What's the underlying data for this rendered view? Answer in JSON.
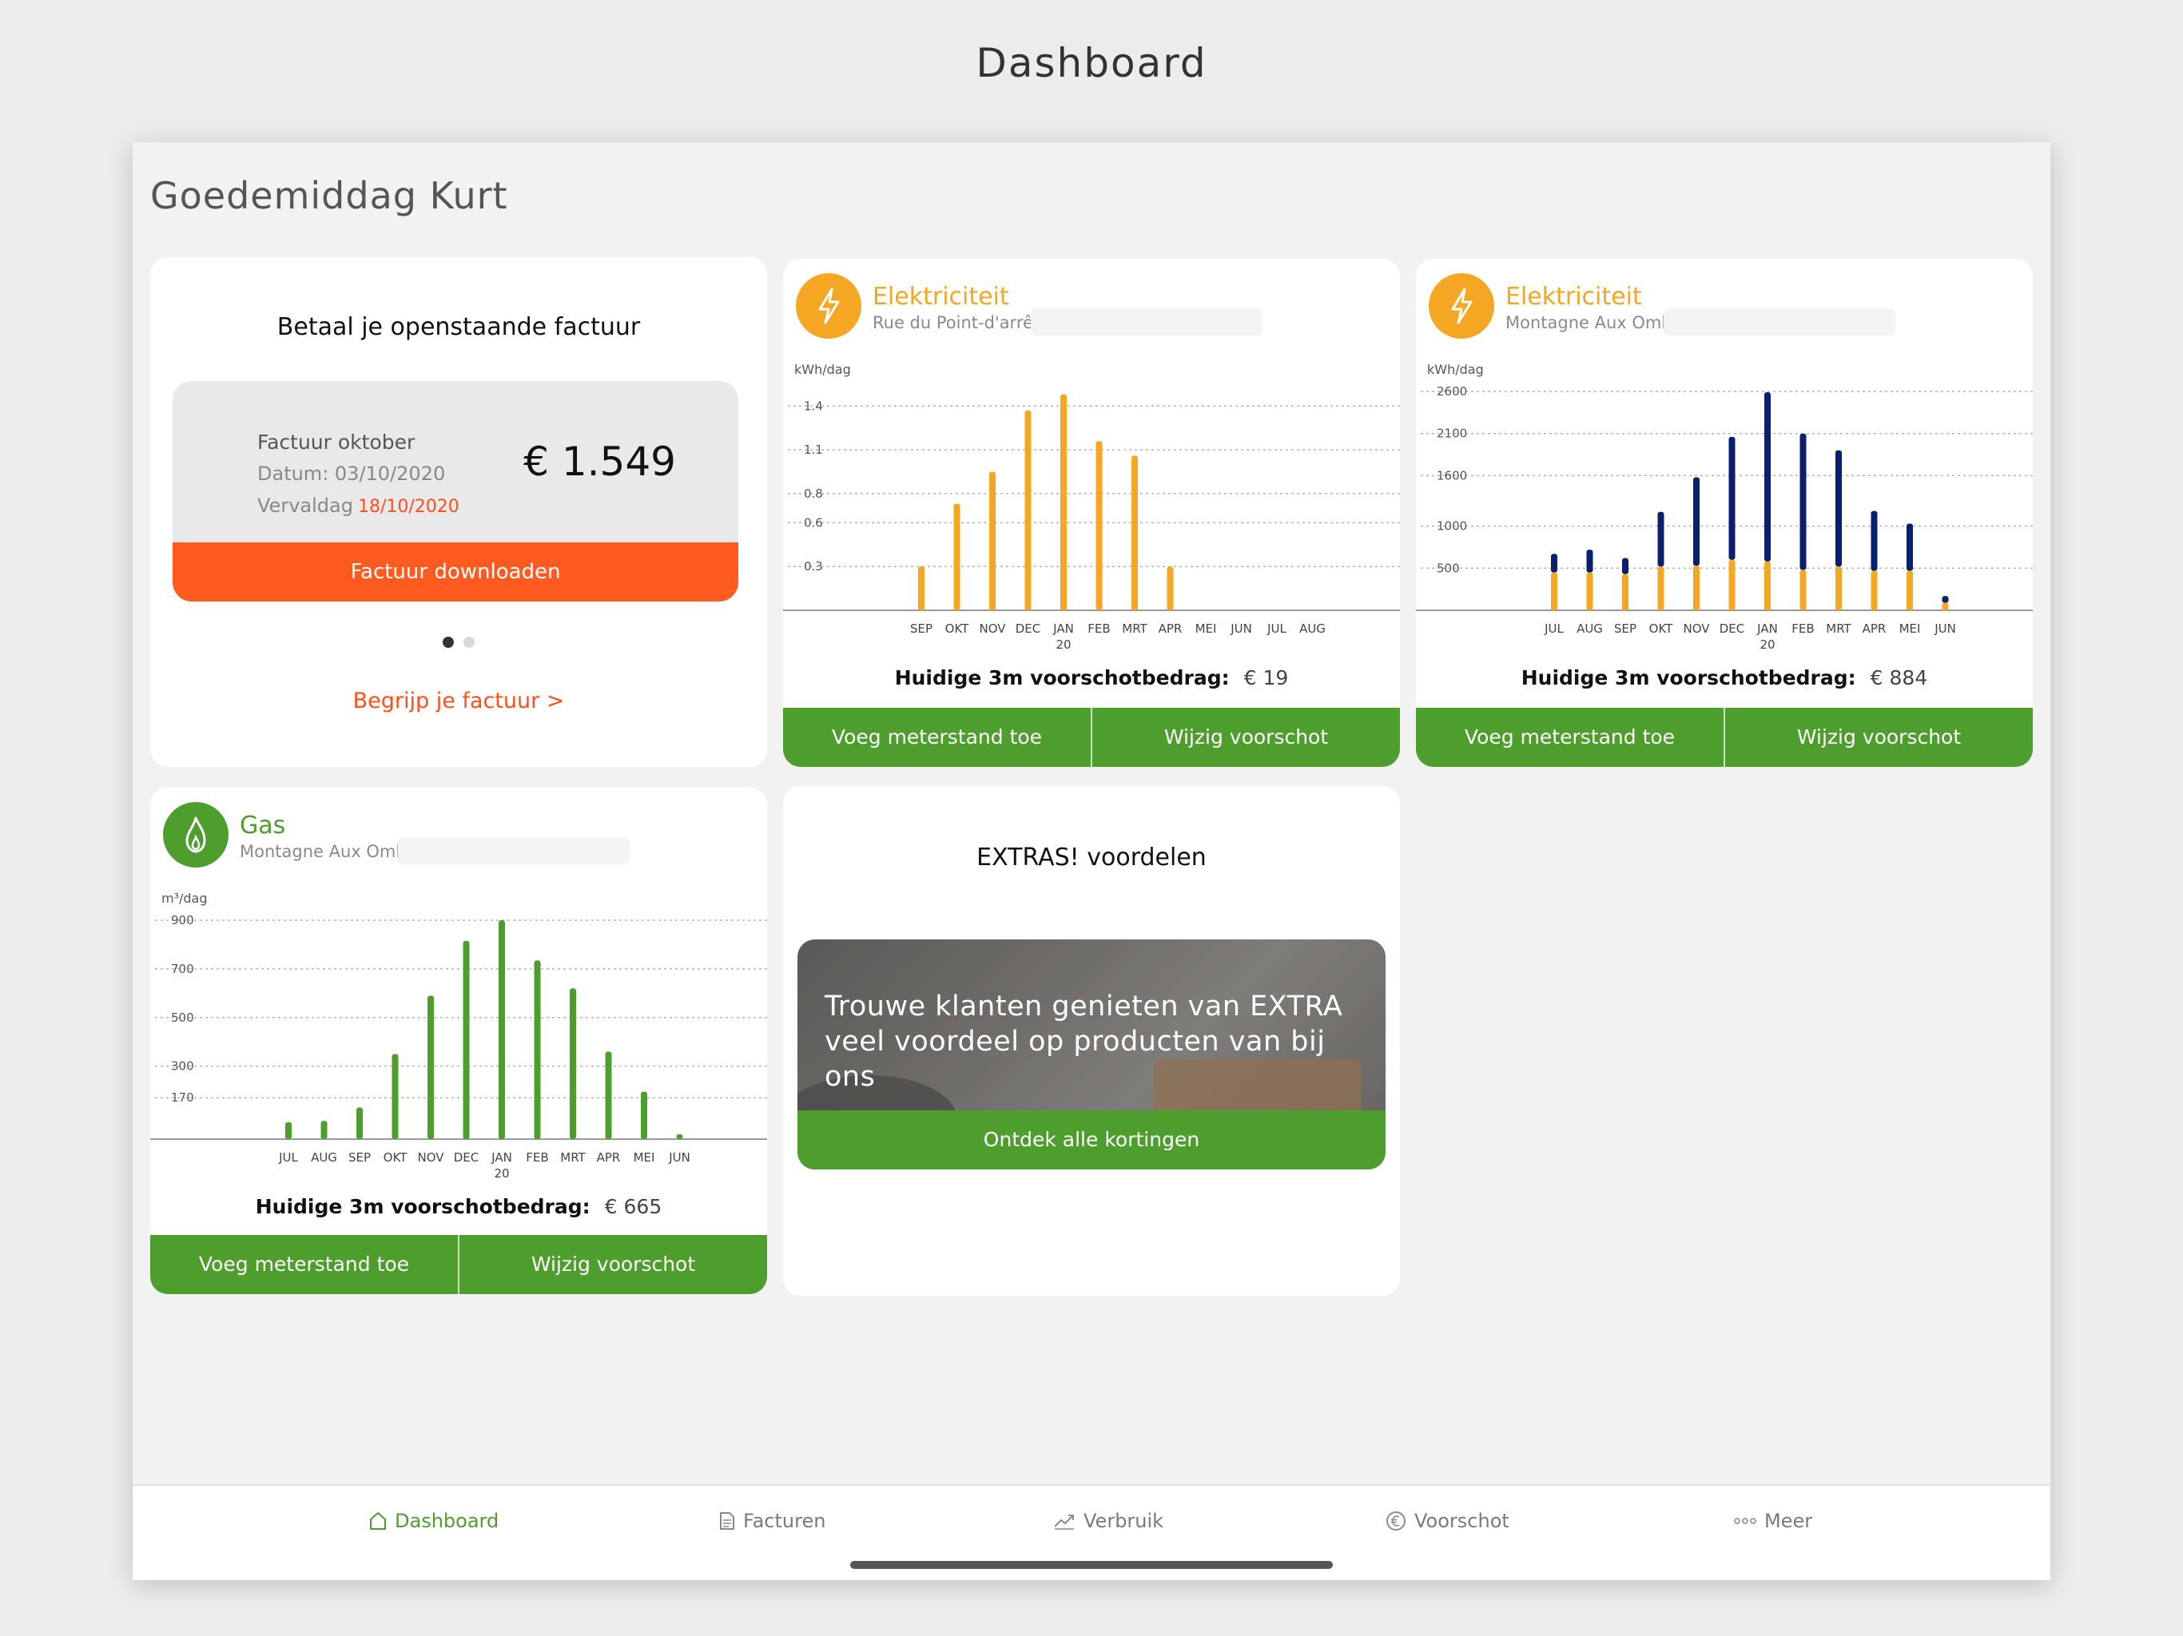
{
  "page_title": "Dashboard",
  "greeting": "Goedemiddag Kurt",
  "invoice": {
    "title": "Betaal je openstaande factuur",
    "label": "Factuur oktober",
    "date_label": "Datum: 03/10/2020",
    "due_label": "Vervaldag",
    "due_value": "18/10/2020",
    "amount": "€ 1.549",
    "download_button": "Factuur downloaden",
    "understand_link": "Begrijp je factuur >",
    "pager_active_color": "#333333",
    "pager_inactive_color": "#d8d8d8"
  },
  "electricity_1": {
    "name": "Elektriciteit",
    "address": "Rue du Point-d'arrêt",
    "icon": "lightning-icon",
    "color": "#f5a623",
    "advance_label": "Huidige 3m voorschotbedrag:",
    "advance_value": "€ 19",
    "meter_button": "Voeg meterstand toe",
    "advance_button": "Wijzig voorschot",
    "chart_data": {
      "type": "bar",
      "ylabel": "kWh/dag",
      "yticks": [
        "1.4",
        "1.1",
        "0.8",
        "0.6",
        "0.3"
      ],
      "ytick_values": [
        1.4,
        1.1,
        0.8,
        0.6,
        0.3
      ],
      "ylim": [
        0,
        1.5
      ],
      "categories": [
        "SEP",
        "OKT",
        "NOV",
        "DEC",
        "JAN",
        "FEB",
        "MRT",
        "APR",
        "MEI",
        "JUN",
        "JUL",
        "AUG"
      ],
      "year_marker": {
        "category": "JAN",
        "label": "20"
      },
      "series": [
        {
          "color": "#f5a623",
          "values": [
            0.3,
            0.73,
            0.95,
            1.37,
            1.48,
            1.16,
            1.06,
            0.3,
            0,
            0,
            0,
            0
          ]
        }
      ]
    }
  },
  "electricity_2": {
    "name": "Elektriciteit",
    "address": "Montagne Aux Ombres",
    "icon": "lightning-icon",
    "color": "#f5a623",
    "advance_label": "Huidige 3m voorschotbedrag:",
    "advance_value": "€ 884",
    "meter_button": "Voeg meterstand toe",
    "advance_button": "Wijzig voorschot",
    "chart_data": {
      "type": "bar",
      "stacked": true,
      "ylabel": "kWh/dag",
      "yticks": [
        "2600",
        "2100",
        "1600",
        "1000",
        "500"
      ],
      "ytick_values": [
        2600,
        2100,
        1600,
        1000,
        500
      ],
      "ylim": [
        0,
        2600
      ],
      "categories": [
        "JUL",
        "AUG",
        "SEP",
        "OKT",
        "NOV",
        "DEC",
        "JAN",
        "FEB",
        "MRT",
        "APR",
        "MEI",
        "JUN"
      ],
      "year_marker": {
        "category": "JAN",
        "label": "20"
      },
      "series": [
        {
          "color": "#f5a623",
          "values": [
            450,
            450,
            430,
            520,
            530,
            600,
            580,
            480,
            520,
            470,
            470,
            90
          ]
        },
        {
          "color": "#0a1f6e",
          "values": [
            220,
            270,
            190,
            650,
            1050,
            1460,
            2010,
            1620,
            1380,
            710,
            560,
            80
          ]
        }
      ]
    }
  },
  "gas": {
    "name": "Gas",
    "address": "Montagne Aux Ombres",
    "icon": "flame-icon",
    "color": "#4e9e2e",
    "advance_label": "Huidige 3m voorschotbedrag:",
    "advance_value": "€ 665",
    "meter_button": "Voeg meterstand toe",
    "advance_button": "Wijzig voorschot",
    "chart_data": {
      "type": "bar",
      "ylabel": "m³/dag",
      "yticks": [
        "900",
        "700",
        "500",
        "300",
        "170"
      ],
      "ytick_values": [
        900,
        700,
        500,
        300,
        170
      ],
      "ylim": [
        0,
        900
      ],
      "categories": [
        "JUL",
        "AUG",
        "SEP",
        "OKT",
        "NOV",
        "DEC",
        "JAN",
        "FEB",
        "MRT",
        "APR",
        "MEI",
        "JUN"
      ],
      "year_marker": {
        "category": "JAN",
        "label": "20"
      },
      "series": [
        {
          "color": "#4e9e2e",
          "values": [
            70,
            75,
            130,
            350,
            590,
            815,
            900,
            735,
            620,
            360,
            195,
            20
          ]
        }
      ]
    }
  },
  "extras": {
    "title": "EXTRAS! voordelen",
    "promo_text": "Trouwe klanten genieten van EXTRA veel voordeel op producten van bij ons",
    "button": "Ontdek alle kortingen"
  },
  "tabbar": {
    "tabs": [
      {
        "label": "Dashboard",
        "icon": "home-icon",
        "active": true
      },
      {
        "label": "Facturen",
        "icon": "document-icon",
        "active": false
      },
      {
        "label": "Verbruik",
        "icon": "trend-icon",
        "active": false
      },
      {
        "label": "Voorschot",
        "icon": "euro-icon",
        "active": false
      },
      {
        "label": "Meer",
        "icon": "more-icon",
        "active": false
      }
    ]
  }
}
